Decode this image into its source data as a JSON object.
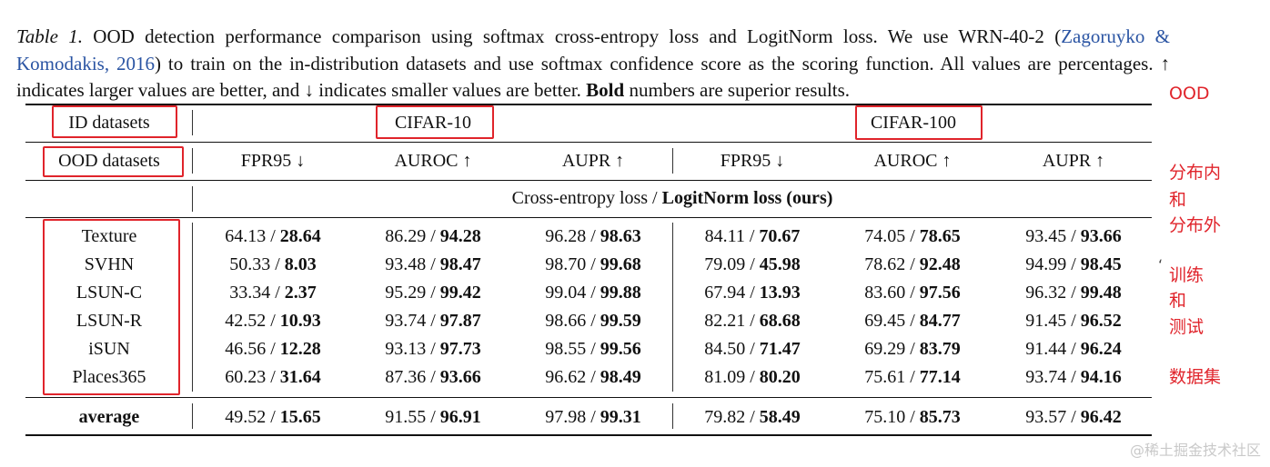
{
  "caption": {
    "label": "Table 1.",
    "text_before_cite": " OOD detection performance comparison using softmax cross-entropy loss and LogitNorm loss. We use WRN-40-2 (",
    "cite": "Zagoruyko & Komodakis, 2016",
    "text_after_cite": ") to train on the in-distribution datasets and use softmax confidence score as the scoring function. All values are percentages. ↑ indicates larger values are better, and ↓ indicates smaller values are better. ",
    "bold": "Bold",
    "text_end": " numbers are superior results."
  },
  "table": {
    "id_datasets_label": "ID datasets",
    "ood_datasets_label": "OOD datasets",
    "groups": [
      "CIFAR-10",
      "CIFAR-100"
    ],
    "metrics": [
      "FPR95 ↓",
      "AUROC ↑",
      "AUPR ↑",
      "FPR95 ↓",
      "AUROC ↑",
      "AUPR ↑"
    ],
    "subheader_normal": "Cross-entropy loss / ",
    "subheader_bold": "LogitNorm loss (ours)",
    "rows": [
      {
        "name": "Texture",
        "cells": [
          [
            "64.13 / ",
            "28.64"
          ],
          [
            "86.29 / ",
            "94.28"
          ],
          [
            "96.28 / ",
            "98.63"
          ],
          [
            "84.11 / ",
            "70.67"
          ],
          [
            "74.05 / ",
            "78.65"
          ],
          [
            "93.45 / ",
            "93.66"
          ]
        ]
      },
      {
        "name": "SVHN",
        "cells": [
          [
            "50.33 / ",
            "8.03"
          ],
          [
            "93.48 / ",
            "98.47"
          ],
          [
            "98.70 / ",
            "99.68"
          ],
          [
            "79.09 / ",
            "45.98"
          ],
          [
            "78.62 / ",
            "92.48"
          ],
          [
            "94.99 / ",
            "98.45"
          ]
        ]
      },
      {
        "name": "LSUN-C",
        "cells": [
          [
            "33.34 / ",
            "2.37"
          ],
          [
            "95.29 / ",
            "99.42"
          ],
          [
            "99.04 / ",
            "99.88"
          ],
          [
            "67.94 / ",
            "13.93"
          ],
          [
            "83.60 / ",
            "97.56"
          ],
          [
            "96.32 / ",
            "99.48"
          ]
        ]
      },
      {
        "name": "LSUN-R",
        "cells": [
          [
            "42.52 / ",
            "10.93"
          ],
          [
            "93.74 / ",
            "97.87"
          ],
          [
            "98.66 / ",
            "99.59"
          ],
          [
            "82.21 / ",
            "68.68"
          ],
          [
            "69.45 / ",
            "84.77"
          ],
          [
            "91.45 / ",
            "96.52"
          ]
        ]
      },
      {
        "name": "iSUN",
        "cells": [
          [
            "46.56 / ",
            "12.28"
          ],
          [
            "93.13 / ",
            "97.73"
          ],
          [
            "98.55 / ",
            "99.56"
          ],
          [
            "84.50 / ",
            "71.47"
          ],
          [
            "69.29 / ",
            "83.79"
          ],
          [
            "91.44 / ",
            "96.24"
          ]
        ]
      },
      {
        "name": "Places365",
        "cells": [
          [
            "60.23 / ",
            "31.64"
          ],
          [
            "87.36 / ",
            "93.66"
          ],
          [
            "96.62 / ",
            "98.49"
          ],
          [
            "81.09 / ",
            "80.20"
          ],
          [
            "75.61 / ",
            "77.14"
          ],
          [
            "93.74 / ",
            "94.16"
          ]
        ]
      }
    ],
    "average": {
      "name": "average",
      "cells": [
        [
          "49.52 / ",
          "15.65"
        ],
        [
          "91.55 / ",
          "96.91"
        ],
        [
          "97.98 / ",
          "99.31"
        ],
        [
          "79.82 / ",
          "58.49"
        ],
        [
          "75.10 / ",
          "85.73"
        ],
        [
          "93.57 / ",
          "96.42"
        ]
      ]
    }
  },
  "annotations": {
    "ood": "OOD",
    "in_out_1": "分布内",
    "in_out_2": "和",
    "in_out_3": "分布外",
    "train_test_1": "训练",
    "train_test_2": "和",
    "train_test_3": "测试",
    "train_test_4": "数据集",
    "tick_mark": "‘"
  },
  "watermark": "@稀土掘金技术社区",
  "colors": {
    "annotation": "#e0242b",
    "citation": "#2a54a3"
  }
}
